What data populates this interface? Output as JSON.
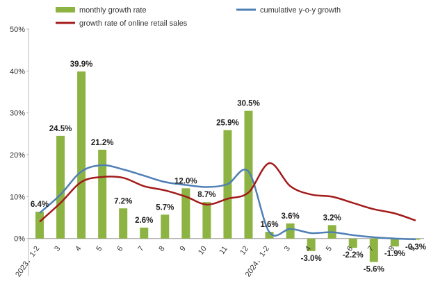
{
  "chart_data": {
    "type": "bar",
    "categories": [
      "2023．1-2",
      "3",
      "4",
      "5",
      "6",
      "7",
      "8",
      "9",
      "10",
      "11",
      "12",
      "2024．1-2",
      "3",
      "4",
      "5",
      "6",
      "7",
      "8",
      "9"
    ],
    "series": [
      {
        "name": "monthly growth rate",
        "type": "bar",
        "color": "#8db443",
        "values": [
          6.4,
          24.5,
          39.9,
          21.2,
          7.2,
          2.6,
          5.7,
          12.0,
          8.7,
          25.9,
          30.5,
          1.6,
          3.6,
          -3.0,
          3.2,
          -2.2,
          -5.6,
          -1.9,
          -0.3
        ],
        "value_labels": [
          "6.4%",
          "24.5%",
          "39.9%",
          "21.2%",
          "7.2%",
          "2.6%",
          "5.7%",
          "12.0%",
          "8.7%",
          "25.9%",
          "30.5%",
          "1.6%",
          "3.6%",
          "-3.0%",
          "3.2%",
          "-2.2%",
          "-5.6%",
          "-1.9%",
          "-0.3%"
        ]
      },
      {
        "name": "cumulative y-o-y growth",
        "type": "line",
        "color": "#4f7fb5",
        "values": [
          6.1,
          10.5,
          16,
          17.5,
          16.5,
          15,
          13.5,
          12.8,
          12.3,
          13,
          16,
          1.5,
          2.3,
          1.3,
          1.5,
          0.8,
          0.3,
          0,
          -0.2
        ]
      },
      {
        "name": "growth rate of online retail sales",
        "type": "line",
        "color": "#a31a1a",
        "values": [
          4,
          8.5,
          13.5,
          14.7,
          14.5,
          12.5,
          11.5,
          10,
          8.1,
          9.5,
          11,
          18,
          12.5,
          10.5,
          10,
          8.5,
          7,
          6,
          4.3
        ]
      }
    ],
    "ylim": [
      -9,
      50
    ],
    "yticks": [
      {
        "value": 0,
        "label": "0%"
      },
      {
        "value": 10,
        "label": "10%"
      },
      {
        "value": 20,
        "label": "20%"
      },
      {
        "value": 30,
        "label": "30%"
      },
      {
        "value": 40,
        "label": "40%"
      },
      {
        "value": 50,
        "label": "50%"
      }
    ],
    "grid": false
  }
}
